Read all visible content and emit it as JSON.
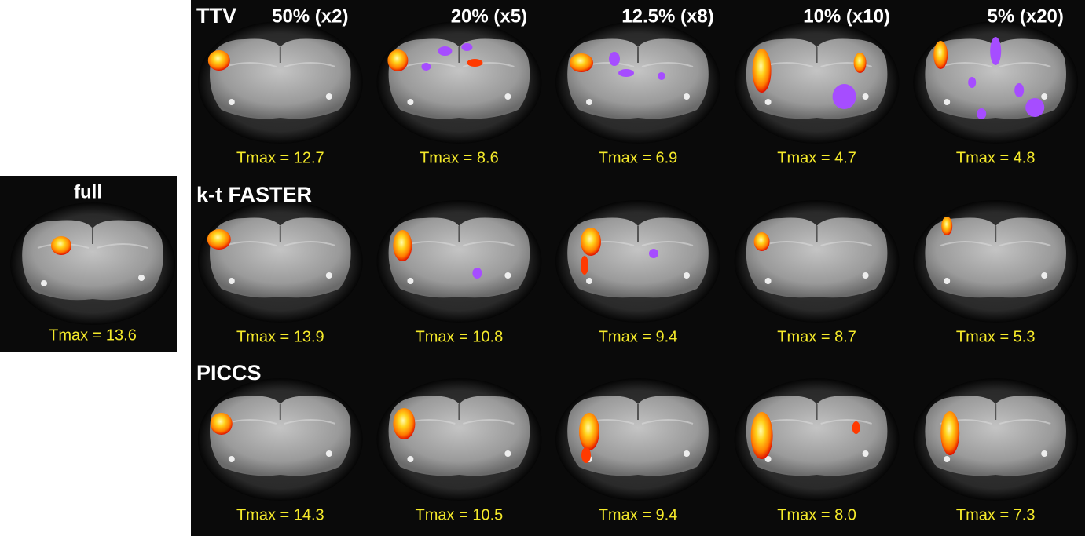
{
  "reference": {
    "label": "full",
    "tmax": "Tmax = 13.6"
  },
  "columns": [
    "50% (x2)",
    "20% (x5)",
    "12.5% (x8)",
    "10% (x10)",
    "5% (x20)"
  ],
  "rows": [
    {
      "method": "TTV",
      "tmax": [
        "Tmax = 12.7",
        "Tmax = 8.6",
        "Tmax = 6.9",
        "Tmax = 4.7",
        "Tmax = 4.8"
      ]
    },
    {
      "method": "k-t FASTER",
      "tmax": [
        "Tmax = 13.9",
        "Tmax = 10.8",
        "Tmax = 9.4",
        "Tmax = 8.7",
        "Tmax = 5.3"
      ]
    },
    {
      "method": "PICCS",
      "tmax": [
        "Tmax = 14.3",
        "Tmax = 10.5",
        "Tmax = 9.4",
        "Tmax = 8.0",
        "Tmax = 7.3"
      ]
    }
  ]
}
